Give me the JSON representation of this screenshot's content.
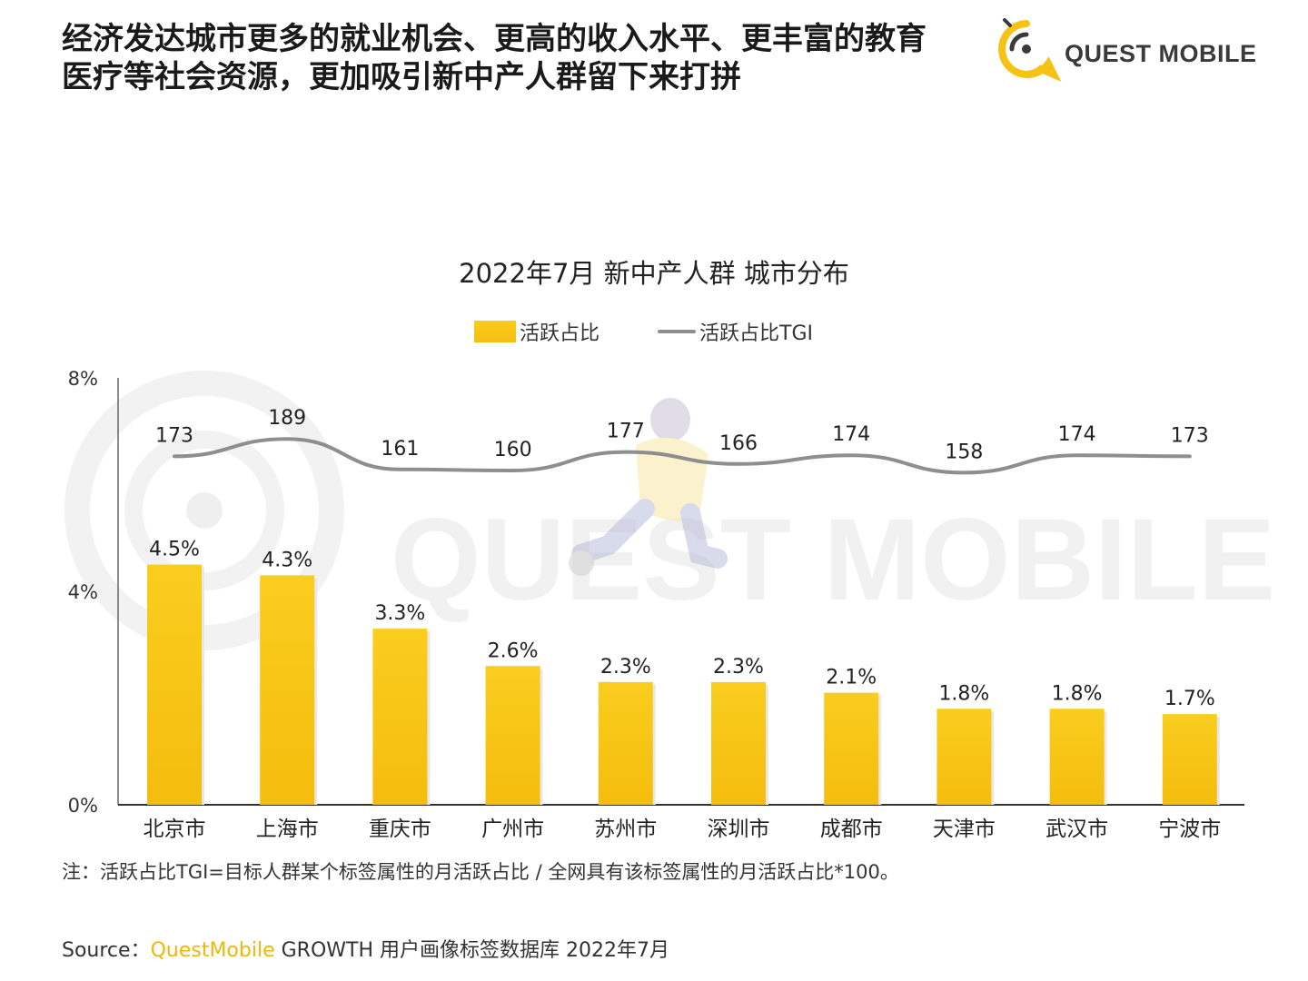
{
  "headline": {
    "line1": "经济发达城市更多的就业机会、更高的收入水平、更丰富的教育",
    "line2": "医疗等社会资源，更加吸引新中产人群留下来打拼"
  },
  "logo": {
    "text": "QUEST MOBILE",
    "watermark_text": "QUEST MOBILE"
  },
  "colors": {
    "bar": "#f7c416",
    "line": "#8e8e8e",
    "brand": "#f2b705"
  },
  "chart_data": {
    "type": "bar",
    "title": "2022年7月 新中产人群 城市分布",
    "categories": [
      "北京市",
      "上海市",
      "重庆市",
      "广州市",
      "苏州市",
      "深圳市",
      "成都市",
      "天津市",
      "武汉市",
      "宁波市"
    ],
    "series": [
      {
        "name": "活跃占比",
        "type": "bar",
        "values": [
          4.5,
          4.3,
          3.3,
          2.6,
          2.3,
          2.3,
          2.1,
          1.8,
          1.8,
          1.7
        ],
        "labels": [
          "4.5%",
          "4.3%",
          "3.3%",
          "2.6%",
          "2.3%",
          "2.3%",
          "2.1%",
          "1.8%",
          "1.8%",
          "1.7%"
        ]
      },
      {
        "name": "活跃占比TGI",
        "type": "line",
        "values": [
          173,
          189,
          161,
          160,
          177,
          166,
          174,
          158,
          174,
          173
        ],
        "labels": [
          "173",
          "189",
          "161",
          "160",
          "177",
          "166",
          "174",
          "158",
          "174",
          "173"
        ]
      }
    ],
    "y_ticks": [
      "8%",
      "4%",
      "0%"
    ],
    "ylim": [
      0,
      8
    ],
    "legend_position": "top-center",
    "grid": false
  },
  "note": "注：活跃占比TGI=目标人群某个标签属性的月活跃占比 / 全网具有该标签属性的月活跃占比*100。",
  "source": {
    "prefix": "Source：",
    "brand": "QuestMobile",
    "rest": " GROWTH 用户画像标签数据库 2022年7月"
  }
}
